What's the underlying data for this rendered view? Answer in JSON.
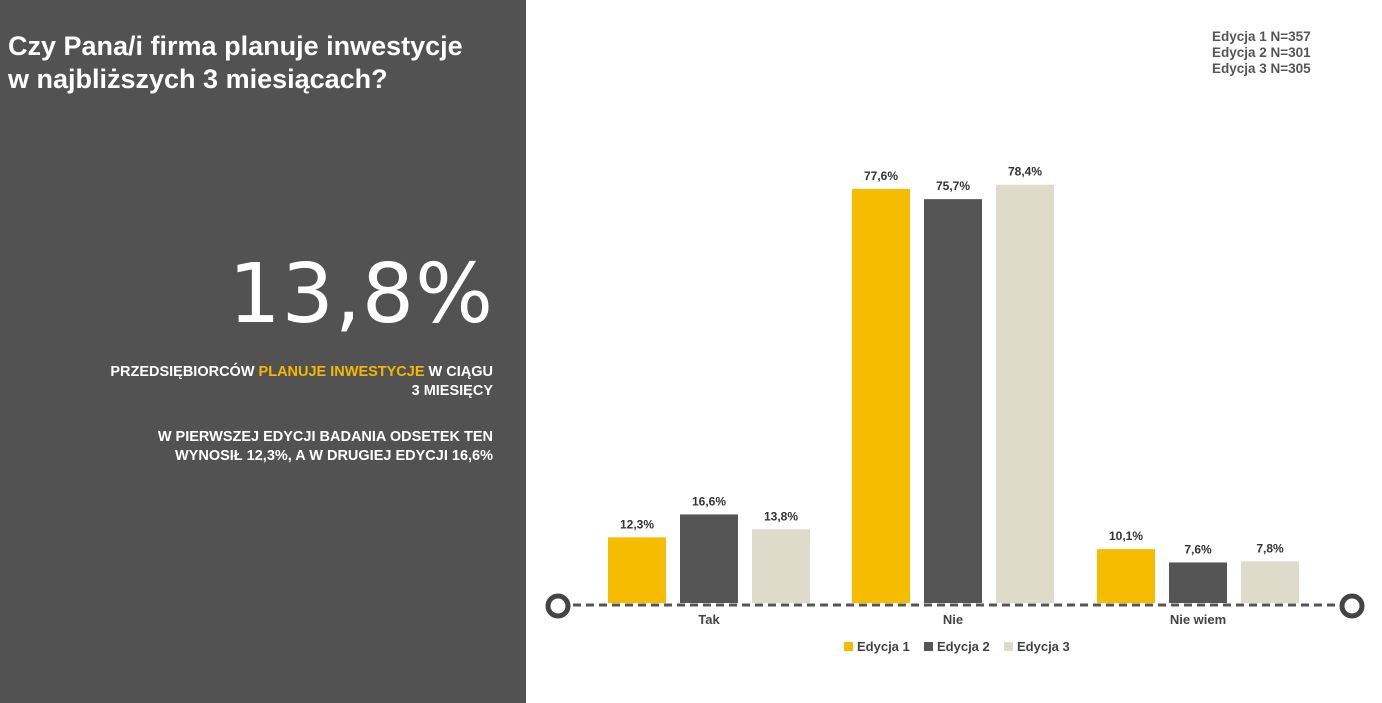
{
  "left_panel": {
    "question_line1": "Czy Pana/i firma planuje inwestycje",
    "question_line2": "w najbliższych 3 miesiącach?",
    "big_value": "13,8%",
    "statement_part1": "PRZEDSIĘBIORCÓW ",
    "statement_highlight": "PLANUJE INWESTYCJE",
    "statement_part2": " W CIĄGU",
    "statement_line2": "3 MIESIĘCY",
    "note_line1": "W PIERWSZEJ EDYCJI BADANIA ODSETEK TEN",
    "note_line2": "WYNOSIŁ 12,3%, A W DRUGIEJ EDYCJI 16,6%"
  },
  "samples": [
    "Edycja 1 N=357",
    "Edycja 2 N=301",
    "Edycja 3 N=305"
  ],
  "colors": {
    "panel": "#525252",
    "highlight": "#f5b800",
    "edycja1": "#f5bc00",
    "edycja2": "#555555",
    "edycja3": "#dedbca"
  },
  "chart_data": {
    "type": "bar",
    "categories": [
      "Tak",
      "Nie",
      "Nie wiem"
    ],
    "series": [
      {
        "name": "Edycja 1",
        "values": [
          12.3,
          77.6,
          10.1
        ],
        "labels": [
          "12,3%",
          "77,6%",
          "10,1%"
        ]
      },
      {
        "name": "Edycja 2",
        "values": [
          16.6,
          75.7,
          7.6
        ],
        "labels": [
          "16,6%",
          "75,7%",
          "7,6%"
        ]
      },
      {
        "name": "Edycja 3",
        "values": [
          13.8,
          78.4,
          7.8
        ],
        "labels": [
          "13,8%",
          "78,4%",
          "7,8%"
        ]
      }
    ],
    "ylim": [
      0,
      100
    ],
    "legend": "bottom",
    "grid": false
  }
}
